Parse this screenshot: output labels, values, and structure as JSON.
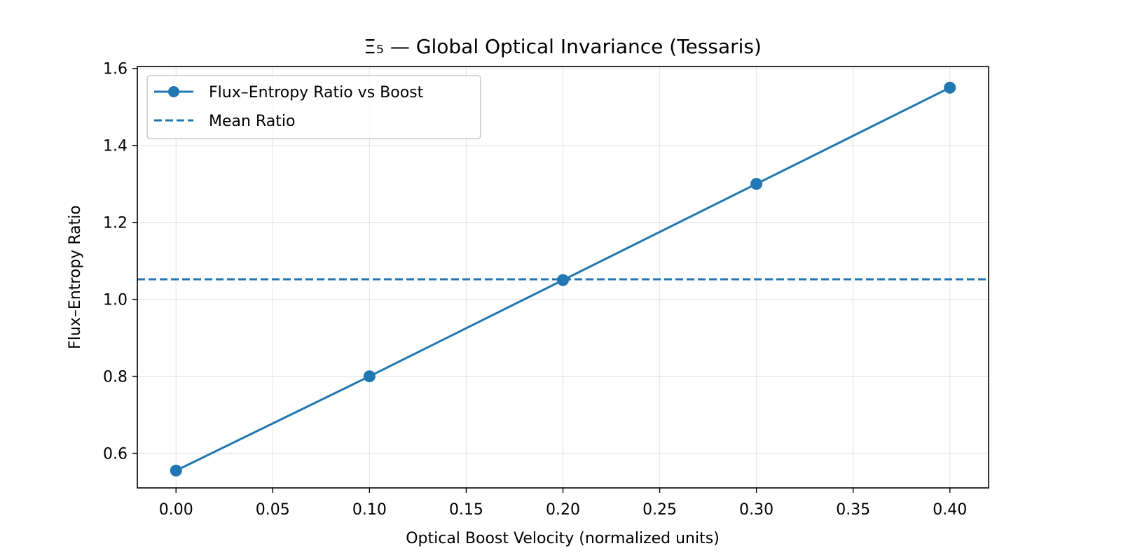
{
  "chart_data": {
    "type": "line",
    "title": "Ξ₅ — Global Optical Invariance (Tessaris)",
    "xlabel": "Optical Boost Velocity (normalized units)",
    "ylabel": "Flux–Entropy Ratio",
    "xlim": [
      -0.02,
      0.42
    ],
    "ylim": [
      0.51,
      1.605
    ],
    "x_ticks": [
      "0.00",
      "0.05",
      "0.10",
      "0.15",
      "0.20",
      "0.25",
      "0.30",
      "0.35",
      "0.40"
    ],
    "y_ticks": [
      "0.6",
      "0.8",
      "1.0",
      "1.2",
      "1.4",
      "1.6"
    ],
    "grid": true,
    "legend_position": "top-left",
    "series": [
      {
        "name": "Flux–Entropy Ratio vs Boost",
        "style": "solid-with-markers",
        "color": "#1f77b4",
        "x": [
          0.0,
          0.1,
          0.2,
          0.3,
          0.4
        ],
        "y": [
          0.555,
          0.8,
          1.05,
          1.3,
          1.55
        ]
      }
    ],
    "reference_lines": [
      {
        "name": "Mean Ratio",
        "orientation": "horizontal",
        "style": "dashed",
        "color": "#1f77b4",
        "y": 1.052
      }
    ]
  }
}
